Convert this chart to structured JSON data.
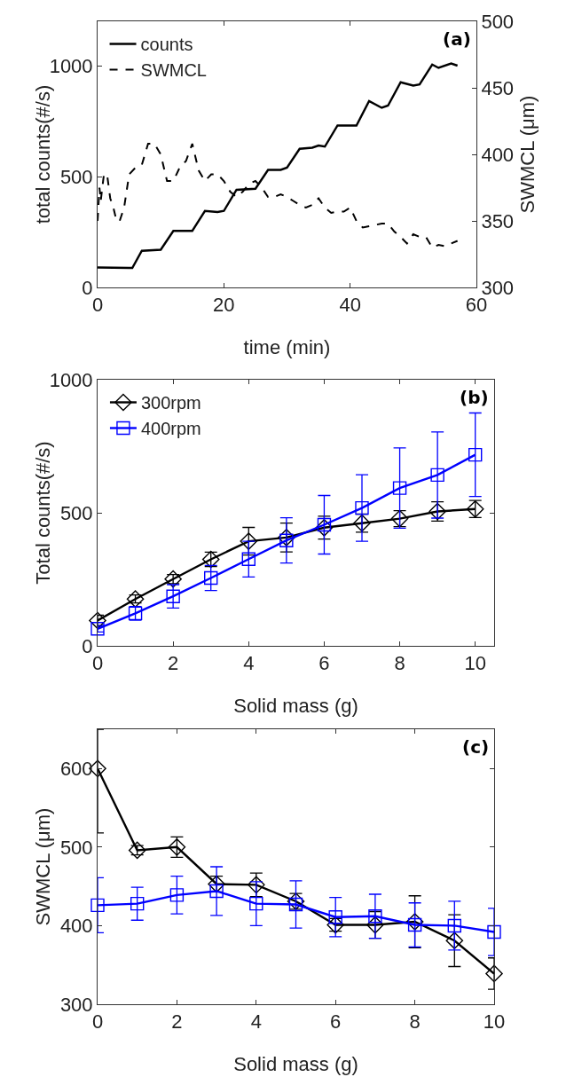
{
  "chart_data": [
    {
      "type": "line",
      "xlabel": "time (min)",
      "ylabel": "total counts(#/s)",
      "y2label": "SWMCL (μm)",
      "annotations": [
        "(a)"
      ],
      "legend": "top left",
      "grid": false,
      "xlim": [
        0,
        60
      ],
      "xticks": [
        0,
        20,
        40,
        60
      ],
      "ylim": [
        0,
        1200
      ],
      "yticks": [
        0,
        500,
        1000
      ],
      "y2lim": [
        300,
        500
      ],
      "y2ticks": [
        300,
        350,
        400,
        450,
        500
      ],
      "series": [
        {
          "name": "counts",
          "color": "#000000",
          "line_style": "solid",
          "x": [
            0,
            5,
            5.5,
            7,
            10,
            12,
            15,
            17,
            19,
            20,
            22,
            25,
            27,
            29,
            30,
            32,
            34,
            35,
            36,
            38,
            41,
            43,
            45,
            46,
            48,
            50,
            51,
            53,
            54,
            56,
            57
          ],
          "values": [
            90,
            88,
            88,
            165,
            170,
            255,
            255,
            345,
            340,
            345,
            440,
            445,
            530,
            530,
            540,
            625,
            630,
            640,
            635,
            730,
            730,
            840,
            810,
            820,
            925,
            910,
            915,
            1005,
            990,
            1010,
            1000
          ]
        },
        {
          "name": "SWMCL",
          "color": "#000000",
          "line_style": "dashed",
          "axis": "y2",
          "x": [
            0,
            0.3,
            0.5,
            1,
            1.5,
            2,
            2.5,
            3,
            3.5,
            4.2,
            5,
            6,
            7,
            8,
            9,
            10,
            11,
            12,
            13,
            14,
            15,
            16,
            17,
            18,
            19,
            20,
            21,
            22,
            23,
            24,
            25,
            26,
            27,
            28,
            29,
            30,
            31,
            32,
            33,
            34,
            35,
            36,
            37,
            38,
            39,
            40,
            41,
            42,
            43,
            44,
            45,
            46,
            47,
            48,
            49,
            50,
            51,
            52,
            53,
            54,
            55,
            56,
            57
          ],
          "values": [
            350,
            375,
            365,
            385,
            385,
            367,
            360,
            350,
            350,
            360,
            385,
            390,
            392,
            408,
            408,
            400,
            380,
            380,
            390,
            395,
            408,
            388,
            380,
            385,
            385,
            380,
            372,
            368,
            372,
            378,
            380,
            375,
            368,
            368,
            370,
            368,
            365,
            362,
            360,
            362,
            367,
            360,
            356,
            357,
            357,
            360,
            350,
            345,
            346,
            347,
            348,
            348,
            342,
            338,
            333,
            340,
            338,
            338,
            330,
            332,
            331,
            333,
            335
          ]
        }
      ]
    },
    {
      "type": "line",
      "xlabel": "Solid mass (g)",
      "ylabel": "Total counts(#/s)",
      "annotations": [
        "(b)"
      ],
      "legend": "top left",
      "grid": false,
      "x": [
        0,
        1,
        2,
        3,
        4,
        5,
        6,
        7,
        8,
        9,
        10
      ],
      "xlim": [
        0,
        10.5
      ],
      "xticks": [
        0,
        2,
        4,
        6,
        8,
        10
      ],
      "ylim": [
        0,
        1000
      ],
      "yticks": [
        0,
        500,
        1000
      ],
      "series": [
        {
          "name": "300rpm",
          "color": "#000000",
          "marker": "diamond",
          "values": [
            95,
            176,
            251,
            325,
            393,
            407,
            444,
            461,
            478,
            505,
            514
          ],
          "errors": [
            20,
            15,
            17,
            27,
            52,
            54,
            43,
            34,
            30,
            36,
            32
          ]
        },
        {
          "name": "400rpm",
          "color": "#0000ff",
          "marker": "square",
          "values": [
            64,
            122,
            186,
            255,
            326,
            396,
            455,
            518,
            593,
            642,
            718
          ],
          "errors": [
            12,
            26,
            44,
            47,
            67,
            85,
            110,
            125,
            151,
            162,
            157
          ]
        }
      ]
    },
    {
      "type": "line",
      "xlabel": "Solid mass (g)",
      "ylabel": "SWMCL (μm)",
      "annotations": [
        "(c)"
      ],
      "legend": false,
      "grid": false,
      "x": [
        0,
        1,
        2,
        3,
        4,
        5,
        6,
        7,
        8,
        9,
        10
      ],
      "xlim": [
        0,
        10
      ],
      "xticks": [
        0,
        2,
        4,
        6,
        8,
        10
      ],
      "ylim": [
        300,
        650
      ],
      "yticks": [
        300,
        400,
        500,
        600
      ],
      "series": [
        {
          "color": "#000000",
          "marker": "diamond",
          "values": [
            600,
            496,
            500,
            453,
            452,
            431,
            401,
            401,
            405,
            381,
            339
          ],
          "errors": [
            [
              518,
              650
            ],
            6,
            13,
            10,
            15,
            10,
            8,
            17,
            33,
            33,
            20
          ]
        },
        {
          "color": "#0000ff",
          "marker": "square",
          "values": [
            426,
            428,
            439,
            444,
            428,
            427,
            411,
            412,
            401,
            400,
            392
          ],
          "errors": [
            35,
            21,
            24,
            31,
            28,
            30,
            25,
            28,
            28,
            31,
            30
          ]
        }
      ]
    }
  ]
}
